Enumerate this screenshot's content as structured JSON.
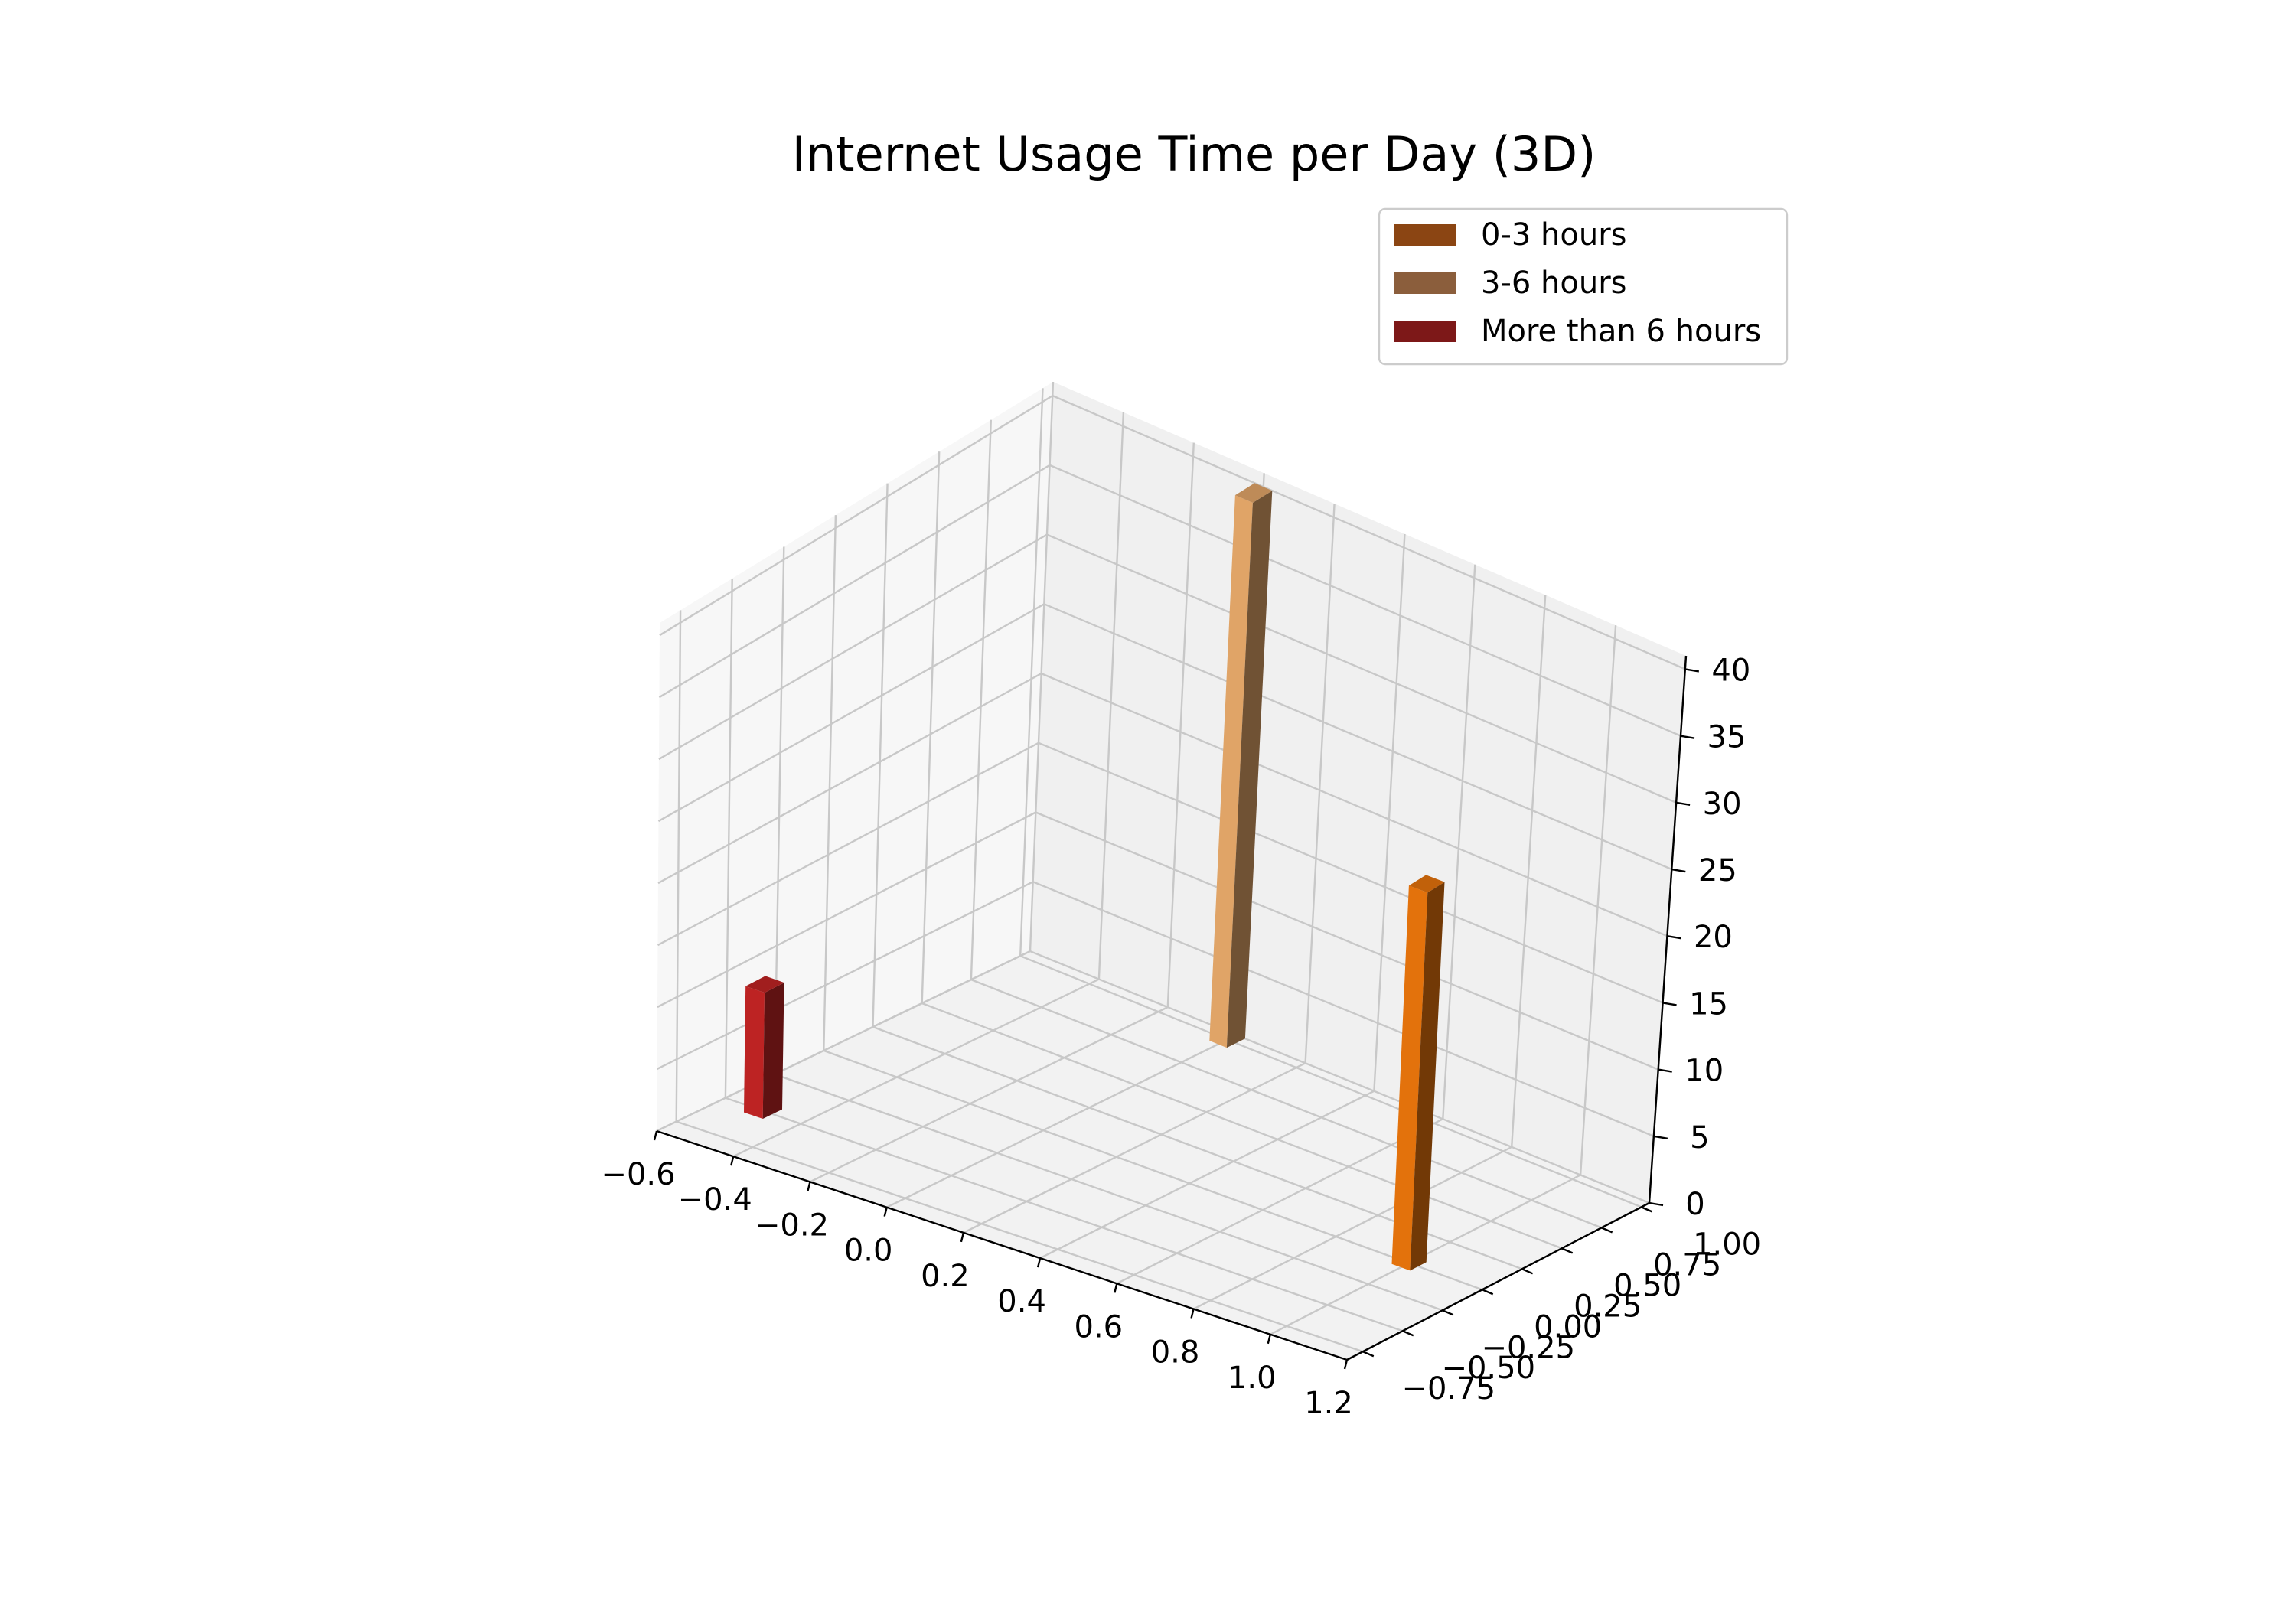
{
  "chart_data": {
    "type": "bar",
    "title": "Internet Usage Time per Day (3D)",
    "xlabel": "",
    "ylabel": "",
    "zlabel": "",
    "x_ticks": [
      "−0.6",
      "−0.4",
      "−0.2",
      "0.0",
      "0.2",
      "0.4",
      "0.6",
      "0.8",
      "1.0",
      "1.2"
    ],
    "y_ticks": [
      "−0.75",
      "−0.50",
      "−0.25",
      "0.00",
      "0.25",
      "0.50",
      "0.75",
      "1.00"
    ],
    "z_ticks": [
      "0",
      "5",
      "10",
      "15",
      "20",
      "25",
      "30",
      "35",
      "40"
    ],
    "xlim": [
      -0.6,
      1.2
    ],
    "ylim": [
      -0.85,
      1.05
    ],
    "zlim": [
      0,
      41
    ],
    "grid": true,
    "legend_position": "top-right",
    "series": [
      {
        "name": "0-3 hours",
        "x": 1.0,
        "y": 0.0,
        "value": 30,
        "color": "#e3720c",
        "legend_color": "#8b4513"
      },
      {
        "name": "3-6 hours",
        "x": 0.0,
        "y": 1.0,
        "value": 40,
        "color": "#e0a467",
        "legend_color": "#8b5e3c"
      },
      {
        "name": "More than 6 hours",
        "x": -0.5,
        "y": -0.5,
        "value": 10,
        "color": "#bd2323",
        "legend_color": "#7d1818"
      }
    ]
  }
}
